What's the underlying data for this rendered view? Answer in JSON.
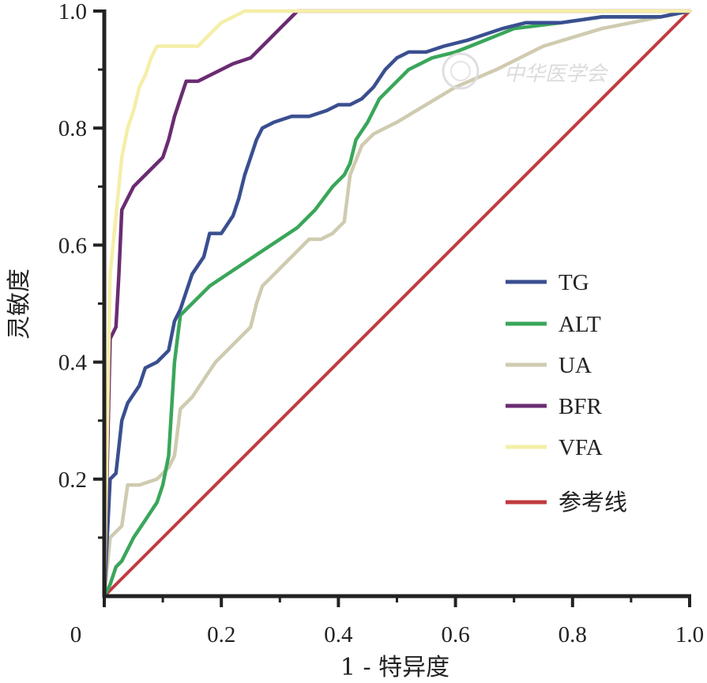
{
  "chart_data": {
    "type": "line",
    "xlabel": "1 - 特异度",
    "ylabel": "灵敏度",
    "xlim": [
      0,
      1.0
    ],
    "ylim": [
      0,
      1.0
    ],
    "x_ticks": [
      "0",
      "0.2",
      "0.4",
      "0.6",
      "0.8",
      "1.0"
    ],
    "y_ticks": [
      "0.2",
      "0.4",
      "0.6",
      "0.8",
      "1.0"
    ],
    "grid": false,
    "legend_position": "right",
    "series": [
      {
        "name": "TG",
        "color": "#3a4f90",
        "x": [
          0,
          0.01,
          0.02,
          0.03,
          0.04,
          0.06,
          0.07,
          0.09,
          0.11,
          0.12,
          0.13,
          0.15,
          0.17,
          0.18,
          0.2,
          0.22,
          0.23,
          0.24,
          0.25,
          0.26,
          0.27,
          0.29,
          0.32,
          0.35,
          0.38,
          0.4,
          0.42,
          0.44,
          0.46,
          0.48,
          0.5,
          0.52,
          0.55,
          0.58,
          0.62,
          0.65,
          0.68,
          0.72,
          0.78,
          0.85,
          0.95,
          1.0
        ],
        "y": [
          0,
          0.2,
          0.21,
          0.3,
          0.33,
          0.36,
          0.39,
          0.4,
          0.42,
          0.47,
          0.49,
          0.55,
          0.58,
          0.62,
          0.62,
          0.65,
          0.68,
          0.72,
          0.75,
          0.78,
          0.8,
          0.81,
          0.82,
          0.82,
          0.83,
          0.84,
          0.84,
          0.85,
          0.87,
          0.9,
          0.92,
          0.93,
          0.93,
          0.94,
          0.95,
          0.96,
          0.97,
          0.98,
          0.98,
          0.99,
          0.99,
          1.0
        ]
      },
      {
        "name": "ALT",
        "color": "#3aa65a",
        "x": [
          0,
          0.01,
          0.02,
          0.03,
          0.05,
          0.07,
          0.09,
          0.1,
          0.11,
          0.12,
          0.13,
          0.15,
          0.18,
          0.21,
          0.24,
          0.27,
          0.3,
          0.33,
          0.36,
          0.39,
          0.41,
          0.42,
          0.43,
          0.45,
          0.47,
          0.49,
          0.52,
          0.56,
          0.6,
          0.65,
          0.7,
          0.78,
          0.85,
          0.95,
          1.0
        ],
        "y": [
          0,
          0.02,
          0.05,
          0.06,
          0.1,
          0.13,
          0.16,
          0.19,
          0.24,
          0.4,
          0.48,
          0.5,
          0.53,
          0.55,
          0.57,
          0.59,
          0.61,
          0.63,
          0.66,
          0.7,
          0.72,
          0.74,
          0.78,
          0.81,
          0.85,
          0.87,
          0.9,
          0.92,
          0.93,
          0.95,
          0.97,
          0.98,
          0.99,
          0.99,
          1.0
        ]
      },
      {
        "name": "UA",
        "color": "#cfcbb0",
        "x": [
          0,
          0.01,
          0.03,
          0.04,
          0.06,
          0.09,
          0.11,
          0.12,
          0.13,
          0.15,
          0.17,
          0.19,
          0.21,
          0.23,
          0.25,
          0.26,
          0.27,
          0.29,
          0.31,
          0.33,
          0.35,
          0.37,
          0.39,
          0.41,
          0.42,
          0.44,
          0.46,
          0.5,
          0.55,
          0.6,
          0.67,
          0.75,
          0.85,
          0.95,
          1.0
        ],
        "y": [
          0,
          0.1,
          0.12,
          0.19,
          0.19,
          0.2,
          0.22,
          0.24,
          0.32,
          0.34,
          0.37,
          0.4,
          0.42,
          0.44,
          0.46,
          0.5,
          0.53,
          0.55,
          0.57,
          0.59,
          0.61,
          0.61,
          0.62,
          0.64,
          0.72,
          0.77,
          0.79,
          0.81,
          0.84,
          0.87,
          0.9,
          0.94,
          0.97,
          0.99,
          1.0
        ]
      },
      {
        "name": "BFR",
        "color": "#6a2c72",
        "x": [
          0,
          0.01,
          0.02,
          0.025,
          0.03,
          0.04,
          0.05,
          0.06,
          0.08,
          0.1,
          0.11,
          0.12,
          0.13,
          0.14,
          0.16,
          0.18,
          0.2,
          0.22,
          0.25,
          0.27,
          0.28,
          0.3,
          0.31,
          0.32,
          0.33,
          0.5,
          0.75,
          1.0
        ],
        "y": [
          0,
          0.44,
          0.46,
          0.55,
          0.66,
          0.68,
          0.7,
          0.71,
          0.73,
          0.75,
          0.78,
          0.82,
          0.85,
          0.88,
          0.88,
          0.89,
          0.9,
          0.91,
          0.92,
          0.94,
          0.95,
          0.97,
          0.98,
          0.99,
          1.0,
          1.0,
          1.0,
          1.0
        ]
      },
      {
        "name": "VFA",
        "color": "#f5eea8",
        "x": [
          0,
          0.01,
          0.02,
          0.03,
          0.04,
          0.05,
          0.06,
          0.07,
          0.08,
          0.09,
          0.1,
          0.13,
          0.16,
          0.18,
          0.19,
          0.2,
          0.22,
          0.24,
          0.3,
          0.5,
          1.0
        ],
        "y": [
          0,
          0.55,
          0.65,
          0.75,
          0.8,
          0.83,
          0.87,
          0.89,
          0.92,
          0.94,
          0.94,
          0.94,
          0.94,
          0.96,
          0.97,
          0.98,
          0.99,
          1.0,
          1.0,
          1.0,
          1.0
        ]
      },
      {
        "name": "参考线",
        "color": "#c03a3f",
        "x": [
          0,
          1.0
        ],
        "y": [
          0,
          1.0
        ]
      }
    ]
  },
  "watermark": {
    "text": "中华医学会"
  }
}
